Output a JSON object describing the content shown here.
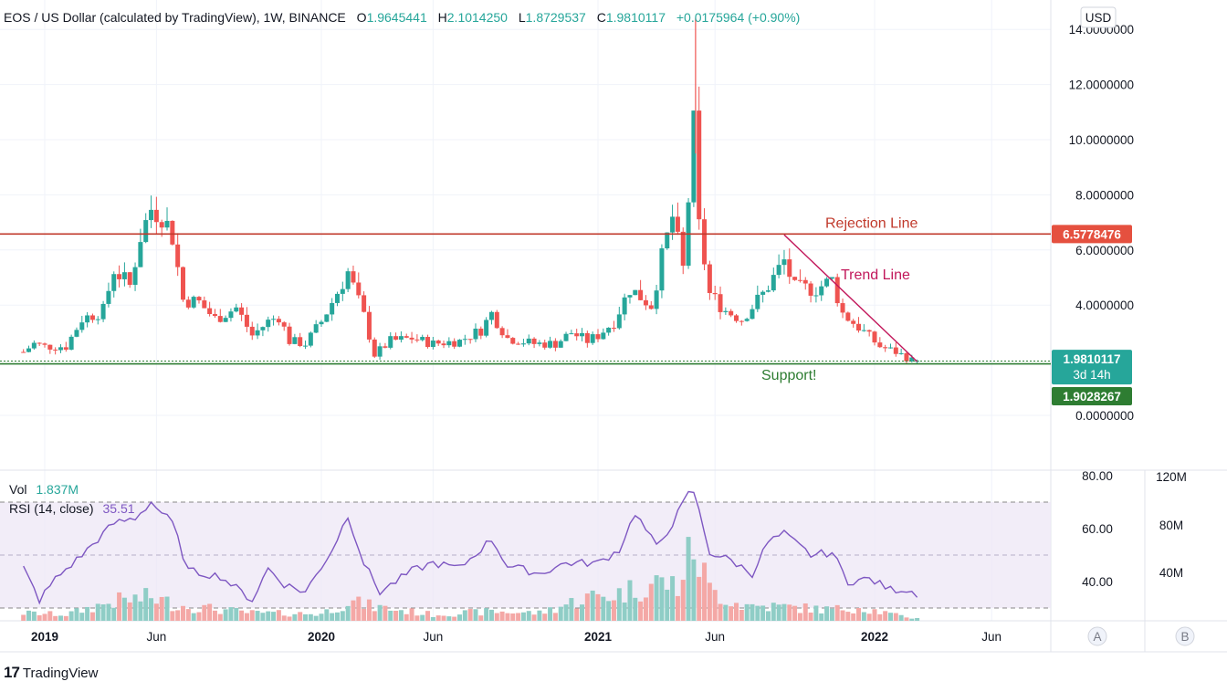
{
  "legend": {
    "symbol": "EOS / US Dollar (calculated by TradingView), 1W, BINANCE",
    "o_label": "O",
    "o": "1.9645441",
    "h_label": "H",
    "h": "2.1014250",
    "l_label": "L",
    "l": "1.8729537",
    "c_label": "C",
    "c": "1.9810117",
    "change": "+0.0175964 (+0.90%)"
  },
  "currency_button": "USD",
  "price_axis_ticks": [
    "14.0000000",
    "12.0000000",
    "10.0000000",
    "8.0000000",
    "6.0000000",
    "4.0000000",
    "0.0000000"
  ],
  "tags": {
    "rejection": "6.5778476",
    "last_price": "1.9810117",
    "countdown": "3d 14h",
    "support": "1.9028267"
  },
  "annotations": {
    "rejection": "Rejection Line",
    "trend": "Trend Line",
    "support": "Support!"
  },
  "indicators": {
    "vol_label": "Vol",
    "vol_value": "1.837M",
    "rsi_label": "RSI (14, close)",
    "rsi_value": "35.51"
  },
  "rsi_axis_ticks": [
    "80.00",
    "60.00",
    "40.00"
  ],
  "vol_axis_ticks": [
    "120M",
    "80M",
    "40M"
  ],
  "time_axis": [
    {
      "label": "2019",
      "bold": true
    },
    {
      "label": "Jun",
      "bold": false
    },
    {
      "label": "2020",
      "bold": true
    },
    {
      "label": "Jun",
      "bold": false
    },
    {
      "label": "2021",
      "bold": true
    },
    {
      "label": "Jun",
      "bold": false
    },
    {
      "label": "2022",
      "bold": true
    },
    {
      "label": "Jun",
      "bold": false
    }
  ],
  "scale_buttons": [
    "A",
    "B"
  ],
  "footer": {
    "brand": "TradingView",
    "logo": "TV-logo-icon"
  },
  "colors": {
    "up": "#26a69a",
    "down": "#ef5350",
    "up_vol": "#8fcdc6",
    "down_vol": "#f4a8a6",
    "rejection": "#c0392b",
    "support": "#2e7d32",
    "trend": "#c2185b",
    "rsi": "#7e57c2",
    "rsi_band": "#ede7f6"
  },
  "chart_data": {
    "type": "candlestick",
    "timeframe": "1W",
    "ylim": [
      0,
      14.5
    ],
    "rsi_ylim": [
      30,
      80
    ],
    "levels": [
      {
        "name": "Rejection Line",
        "value": 6.5778476
      },
      {
        "name": "Support!",
        "value": 1.9028267
      }
    ],
    "trend_line": {
      "name": "Trend Line",
      "start": {
        "date": "2021-09-06",
        "value": 6.55
      },
      "end": {
        "date": "2022-02-28",
        "value": 1.95
      }
    },
    "weekly_close_path": [
      [
        "2018-12-10",
        2.3
      ],
      [
        "2018-12-24",
        2.6
      ],
      [
        "2019-01-07",
        2.5
      ],
      [
        "2019-02-04",
        2.5
      ],
      [
        "2019-02-25",
        3.5
      ],
      [
        "2019-03-25",
        3.8
      ],
      [
        "2019-04-08",
        5.3
      ],
      [
        "2019-04-29",
        4.7
      ],
      [
        "2019-05-13",
        6.5
      ],
      [
        "2019-05-27",
        7.5
      ],
      [
        "2019-06-10",
        7.3
      ],
      [
        "2019-06-24",
        6.5
      ],
      [
        "2019-07-08",
        4.2
      ],
      [
        "2019-07-29",
        4.1
      ],
      [
        "2019-08-19",
        3.5
      ],
      [
        "2019-09-16",
        3.9
      ],
      [
        "2019-10-07",
        2.9
      ],
      [
        "2019-10-28",
        3.4
      ],
      [
        "2019-11-11",
        3.6
      ],
      [
        "2019-11-25",
        2.7
      ],
      [
        "2019-12-16",
        2.6
      ],
      [
        "2020-01-06",
        3.4
      ],
      [
        "2020-01-20",
        4.1
      ],
      [
        "2020-02-10",
        5.2
      ],
      [
        "2020-03-02",
        3.6
      ],
      [
        "2020-03-16",
        2.2
      ],
      [
        "2020-04-06",
        2.7
      ],
      [
        "2020-05-04",
        2.8
      ],
      [
        "2020-06-01",
        2.6
      ],
      [
        "2020-07-06",
        2.7
      ],
      [
        "2020-08-03",
        3.1
      ],
      [
        "2020-08-17",
        3.7
      ],
      [
        "2020-09-07",
        2.8
      ],
      [
        "2020-10-12",
        2.6
      ],
      [
        "2020-11-09",
        2.6
      ],
      [
        "2020-11-30",
        3.0
      ],
      [
        "2020-12-21",
        2.7
      ],
      [
        "2021-01-04",
        2.9
      ],
      [
        "2021-01-25",
        3.4
      ],
      [
        "2021-02-15",
        4.6
      ],
      [
        "2021-03-15",
        4.0
      ],
      [
        "2021-03-29",
        5.7
      ],
      [
        "2021-04-12",
        7.2
      ],
      [
        "2021-04-26",
        5.3
      ],
      [
        "2021-05-10",
        10.4
      ],
      [
        "2021-05-17",
        6.8
      ],
      [
        "2021-05-31",
        4.4
      ],
      [
        "2021-06-21",
        3.8
      ],
      [
        "2021-07-12",
        3.5
      ],
      [
        "2021-08-09",
        4.4
      ],
      [
        "2021-09-06",
        5.6
      ],
      [
        "2021-09-20",
        4.6
      ],
      [
        "2021-10-18",
        4.6
      ],
      [
        "2021-11-08",
        4.9
      ],
      [
        "2021-11-22",
        3.7
      ],
      [
        "2021-12-13",
        3.2
      ],
      [
        "2022-01-10",
        2.5
      ],
      [
        "2022-01-31",
        2.3
      ],
      [
        "2022-02-21",
        2.0
      ]
    ],
    "rsi_path": [
      [
        "2018-12-10",
        45
      ],
      [
        "2018-12-31",
        33
      ],
      [
        "2019-01-21",
        41
      ],
      [
        "2019-02-25",
        50
      ],
      [
        "2019-04-08",
        62
      ],
      [
        "2019-05-06",
        64
      ],
      [
        "2019-05-27",
        70
      ],
      [
        "2019-06-24",
        62
      ],
      [
        "2019-07-15",
        44
      ],
      [
        "2019-08-26",
        42
      ],
      [
        "2019-10-07",
        33
      ],
      [
        "2019-10-28",
        45
      ],
      [
        "2019-11-18",
        39
      ],
      [
        "2019-12-16",
        36
      ],
      [
        "2020-01-20",
        52
      ],
      [
        "2020-02-10",
        65
      ],
      [
        "2020-03-02",
        47
      ],
      [
        "2020-03-23",
        36
      ],
      [
        "2020-05-04",
        44
      ],
      [
        "2020-06-01",
        47
      ],
      [
        "2020-07-06",
        45
      ],
      [
        "2020-08-17",
        56
      ],
      [
        "2020-09-07",
        46
      ],
      [
        "2020-10-19",
        43
      ],
      [
        "2020-11-23",
        47
      ],
      [
        "2021-01-04",
        47
      ],
      [
        "2021-02-01",
        52
      ],
      [
        "2021-02-22",
        66
      ],
      [
        "2021-03-22",
        53
      ],
      [
        "2021-04-12",
        62
      ],
      [
        "2021-05-03",
        73
      ],
      [
        "2021-05-10",
        74
      ],
      [
        "2021-05-31",
        51
      ],
      [
        "2021-06-28",
        48
      ],
      [
        "2021-07-26",
        43
      ],
      [
        "2021-08-16",
        55
      ],
      [
        "2021-09-06",
        58
      ],
      [
        "2021-10-11",
        50
      ],
      [
        "2021-11-08",
        51
      ],
      [
        "2021-11-29",
        40
      ],
      [
        "2021-12-27",
        41
      ],
      [
        "2022-01-24",
        37
      ],
      [
        "2022-02-14",
        37
      ],
      [
        "2022-02-28",
        35.5
      ]
    ],
    "vol_ylim": [
      0,
      120
    ],
    "volume_profile_M": [
      [
        "2018-12-10",
        10
      ],
      [
        "2019-02-04",
        8
      ],
      [
        "2019-04-08",
        25
      ],
      [
        "2019-05-27",
        30
      ],
      [
        "2019-07-01",
        20
      ],
      [
        "2019-10-07",
        10
      ],
      [
        "2020-01-06",
        9
      ],
      [
        "2020-02-10",
        25
      ],
      [
        "2020-03-16",
        18
      ],
      [
        "2020-06-01",
        8
      ],
      [
        "2020-08-17",
        12
      ],
      [
        "2020-10-19",
        10
      ],
      [
        "2020-12-21",
        30
      ],
      [
        "2021-02-01",
        35
      ],
      [
        "2021-03-22",
        50
      ],
      [
        "2021-04-19",
        45
      ],
      [
        "2021-05-10",
        95
      ],
      [
        "2021-05-31",
        40
      ],
      [
        "2021-07-12",
        20
      ],
      [
        "2021-09-06",
        18
      ],
      [
        "2021-11-08",
        14
      ],
      [
        "2021-12-13",
        18
      ],
      [
        "2022-01-31",
        7
      ],
      [
        "2022-02-28",
        3
      ]
    ]
  }
}
